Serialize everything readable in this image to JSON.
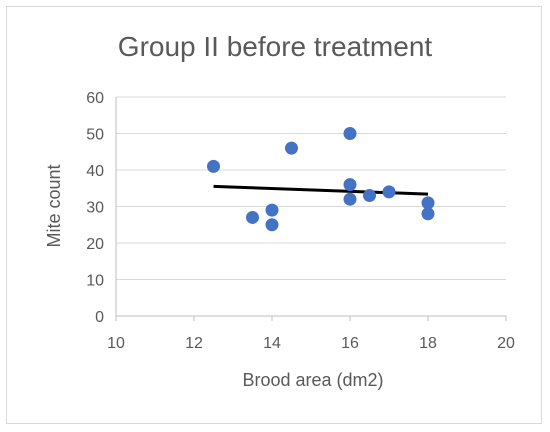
{
  "chart_data": {
    "type": "scatter",
    "title": "Group II before treatment",
    "xlabel": "Brood area (dm2)",
    "ylabel": "Mite count",
    "xlim": [
      10,
      20
    ],
    "ylim": [
      0,
      60
    ],
    "x_ticks": [
      "10",
      "12",
      "14",
      "16",
      "18",
      "20"
    ],
    "y_ticks": [
      "0",
      "10",
      "20",
      "30",
      "40",
      "50",
      "60"
    ],
    "grid": "horizontal",
    "marker_color": "#4472c4",
    "trendline_color": "#000000",
    "points": [
      {
        "x": 12.5,
        "y": 41
      },
      {
        "x": 13.5,
        "y": 27
      },
      {
        "x": 14,
        "y": 29
      },
      {
        "x": 14,
        "y": 25
      },
      {
        "x": 14.5,
        "y": 46
      },
      {
        "x": 16,
        "y": 50
      },
      {
        "x": 16,
        "y": 36
      },
      {
        "x": 16,
        "y": 32
      },
      {
        "x": 16.5,
        "y": 33
      },
      {
        "x": 17,
        "y": 34
      },
      {
        "x": 18,
        "y": 31
      },
      {
        "x": 18,
        "y": 28
      }
    ],
    "trendline": {
      "type": "linear",
      "x": [
        12.5,
        18
      ],
      "y": [
        35.5,
        33.4
      ]
    }
  }
}
